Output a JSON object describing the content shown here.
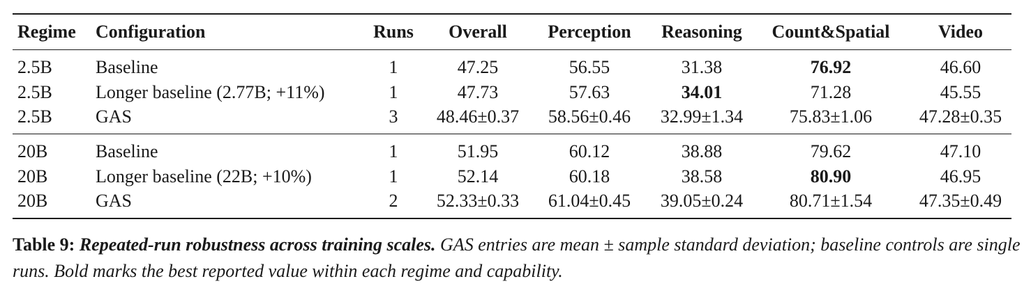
{
  "table": {
    "headers": [
      "Regime",
      "Configuration",
      "Runs",
      "Overall",
      "Perception",
      "Reasoning",
      "Count&Spatial",
      "Video"
    ],
    "row_groups": [
      [
        [
          "2.5B",
          "Baseline",
          "1",
          "47.25",
          "56.55",
          "31.38",
          {
            "text": "76.92",
            "bold": true
          },
          "46.60"
        ],
        [
          "2.5B",
          "Longer baseline (2.77B; +11%)",
          "1",
          "47.73",
          "57.63",
          {
            "text": "34.01",
            "bold": true
          },
          "71.28",
          "45.55"
        ],
        [
          "2.5B",
          "GAS",
          "3",
          "48.46±0.37",
          "58.56±0.46",
          "32.99±1.34",
          "75.83±1.06",
          "47.28±0.35"
        ]
      ],
      [
        [
          "20B",
          "Baseline",
          "1",
          "51.95",
          "60.12",
          "38.88",
          "79.62",
          "47.10"
        ],
        [
          "20B",
          "Longer baseline (22B; +10%)",
          "1",
          "52.14",
          "60.18",
          "38.58",
          {
            "text": "80.90",
            "bold": true
          },
          "46.95"
        ],
        [
          "20B",
          "GAS",
          "2",
          "52.33±0.33",
          "61.04±0.45",
          "39.05±0.24",
          "80.71±1.54",
          "47.35±0.49"
        ]
      ]
    ]
  },
  "caption": {
    "label": "Table 9:",
    "title": "Repeated-run robustness across training scales.",
    "text": "GAS entries are mean ± sample standard deviation; baseline controls are single runs. Bold marks the best reported value within each regime and capability."
  }
}
